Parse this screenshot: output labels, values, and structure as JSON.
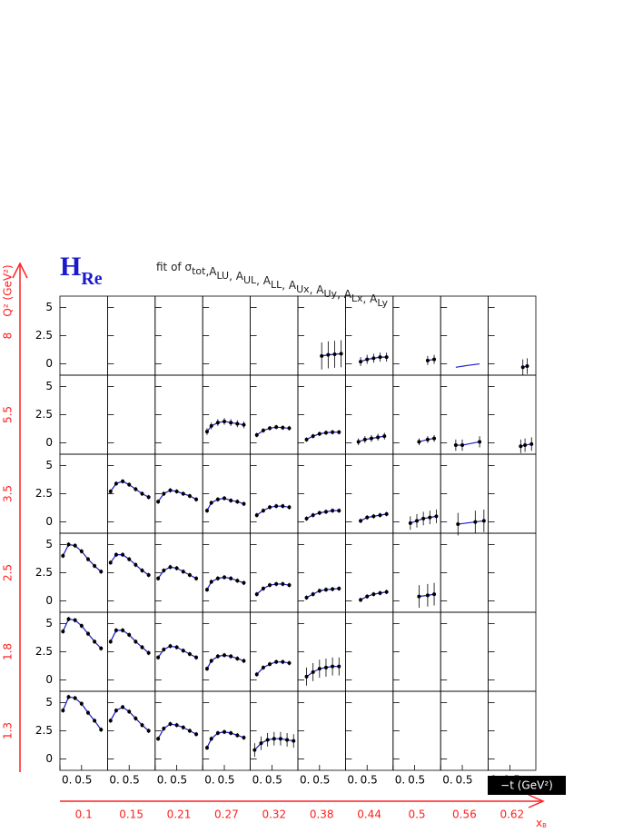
{
  "chart_data": {
    "type": "panel-grid",
    "title": {
      "text": "H",
      "sub": "Re"
    },
    "subtitle": [
      {
        "text": "fit of σ",
        "sub": "tot"
      },
      {
        "text": ",A",
        "sub": "LU"
      },
      {
        "text": ", A",
        "sub": "UL"
      },
      {
        "text": ", A",
        "sub": "LL"
      },
      {
        "text": ", A",
        "sub": "Ux"
      },
      {
        "text": ", A",
        "sub": "Uy"
      },
      {
        "text": ", A",
        "sub": "Lx"
      },
      {
        "text": ", A",
        "sub": "Ly"
      }
    ],
    "y_label": "Q² (GeV²)",
    "x_label": {
      "text": "x",
      "sub": "B"
    },
    "t_label": "−t (GeV²)",
    "rows": [
      8,
      5.5,
      3.5,
      2.5,
      1.8,
      1.3
    ],
    "cols": [
      0.1,
      0.15,
      0.21,
      0.27,
      0.32,
      0.38,
      0.44,
      0.5,
      0.56,
      0.62
    ],
    "ylim": [
      -1,
      6
    ],
    "yticks": [
      0,
      2.5,
      5
    ],
    "xlim": [
      0,
      1.1
    ],
    "xticks": [
      {
        "value": 0,
        "label": "0."
      },
      0.5
    ],
    "point_color": "#000000",
    "curve_color": "#1a1acc",
    "annotation_color": "#ff2020",
    "panels": [
      [
        null,
        null,
        null,
        null,
        null,
        {
          "x": [
            0.55,
            0.7,
            0.85,
            1.0
          ],
          "y": [
            0.7,
            0.8,
            0.85,
            0.9
          ],
          "err": 1.2
        },
        {
          "x": [
            0.35,
            0.5,
            0.65,
            0.8,
            0.95
          ],
          "y": [
            0.2,
            0.4,
            0.5,
            0.6,
            0.6
          ],
          "err": 0.4
        },
        {
          "x": [
            0.8,
            0.95
          ],
          "y": [
            0.3,
            0.4
          ],
          "err": 0.4
        },
        {
          "x": [
            0.35,
            0.6,
            0.9
          ],
          "y": [
            -0.3,
            -0.15,
            0.0
          ],
          "markers": false
        },
        {
          "x": [
            0.8,
            0.9
          ],
          "y": [
            -0.3,
            -0.2
          ],
          "err": 0.7
        }
      ],
      [
        null,
        null,
        null,
        {
          "x": [
            0.1,
            0.2,
            0.35,
            0.5,
            0.65,
            0.8,
            0.95
          ],
          "y": [
            1.0,
            1.5,
            1.8,
            1.9,
            1.8,
            1.7,
            1.6
          ],
          "err": 0.3
        },
        {
          "x": [
            0.15,
            0.3,
            0.45,
            0.6,
            0.75,
            0.9
          ],
          "y": [
            0.7,
            1.1,
            1.3,
            1.4,
            1.35,
            1.3
          ],
          "err": 0.2
        },
        {
          "x": [
            0.2,
            0.35,
            0.5,
            0.65,
            0.8,
            0.95
          ],
          "y": [
            0.3,
            0.6,
            0.8,
            0.9,
            0.95,
            0.95
          ],
          "err": 0.2
        },
        {
          "x": [
            0.3,
            0.45,
            0.6,
            0.75,
            0.9
          ],
          "y": [
            0.1,
            0.3,
            0.4,
            0.5,
            0.6
          ],
          "err": 0.3
        },
        {
          "x": [
            0.6,
            0.8,
            0.95
          ],
          "y": [
            0.1,
            0.3,
            0.4
          ],
          "err": 0.3
        },
        {
          "x": [
            0.35,
            0.5,
            0.9
          ],
          "y": [
            -0.2,
            -0.2,
            0.1
          ],
          "err": 0.5
        },
        {
          "x": [
            0.75,
            0.85,
            1.0
          ],
          "y": [
            -0.3,
            -0.2,
            -0.1
          ],
          "err": 0.6
        }
      ],
      [
        null,
        {
          "x": [
            0.07,
            0.2,
            0.35,
            0.5,
            0.65,
            0.8,
            0.95
          ],
          "y": [
            2.7,
            3.4,
            3.6,
            3.3,
            2.9,
            2.5,
            2.2
          ],
          "err": 0.2
        },
        {
          "x": [
            0.07,
            0.2,
            0.35,
            0.5,
            0.65,
            0.8,
            0.95
          ],
          "y": [
            1.8,
            2.5,
            2.8,
            2.7,
            2.5,
            2.3,
            2.0
          ],
          "err": 0.2
        },
        {
          "x": [
            0.1,
            0.2,
            0.35,
            0.5,
            0.65,
            0.8,
            0.95
          ],
          "y": [
            1.0,
            1.7,
            2.0,
            2.1,
            1.9,
            1.8,
            1.6
          ],
          "err": 0.2
        },
        {
          "x": [
            0.15,
            0.3,
            0.45,
            0.6,
            0.75,
            0.9
          ],
          "y": [
            0.6,
            1.0,
            1.3,
            1.4,
            1.4,
            1.3
          ],
          "err": 0.2
        },
        {
          "x": [
            0.2,
            0.35,
            0.5,
            0.65,
            0.8,
            0.95
          ],
          "y": [
            0.3,
            0.6,
            0.8,
            0.9,
            1.0,
            1.0
          ],
          "err": 0.2
        },
        {
          "x": [
            0.35,
            0.5,
            0.65,
            0.8,
            0.95
          ],
          "y": [
            0.1,
            0.4,
            0.5,
            0.6,
            0.7
          ],
          "err": 0.2
        },
        {
          "x": [
            0.4,
            0.55,
            0.7,
            0.85,
            1.0
          ],
          "y": [
            -0.1,
            0.1,
            0.3,
            0.4,
            0.5
          ],
          "err": 0.6
        },
        {
          "x": [
            0.4,
            0.8,
            1.0
          ],
          "y": [
            -0.2,
            0.0,
            0.1
          ],
          "err": 1.0
        },
        null
      ],
      [
        {
          "x": [
            0.07,
            0.2,
            0.35,
            0.5,
            0.65,
            0.8,
            0.95
          ],
          "y": [
            4.0,
            5.0,
            4.9,
            4.4,
            3.7,
            3.1,
            2.6
          ],
          "err": 0.2
        },
        {
          "x": [
            0.07,
            0.2,
            0.35,
            0.5,
            0.65,
            0.8,
            0.95
          ],
          "y": [
            3.4,
            4.1,
            4.1,
            3.7,
            3.2,
            2.7,
            2.3
          ],
          "err": 0.2
        },
        {
          "x": [
            0.07,
            0.2,
            0.35,
            0.5,
            0.65,
            0.8,
            0.95
          ],
          "y": [
            2.0,
            2.7,
            3.0,
            2.9,
            2.6,
            2.3,
            2.0
          ],
          "err": 0.2
        },
        {
          "x": [
            0.1,
            0.2,
            0.35,
            0.5,
            0.65,
            0.8,
            0.95
          ],
          "y": [
            1.0,
            1.7,
            2.0,
            2.1,
            2.0,
            1.8,
            1.6
          ],
          "err": 0.2
        },
        {
          "x": [
            0.15,
            0.3,
            0.45,
            0.6,
            0.75,
            0.9
          ],
          "y": [
            0.6,
            1.1,
            1.4,
            1.5,
            1.5,
            1.4
          ],
          "err": 0.2
        },
        {
          "x": [
            0.2,
            0.35,
            0.5,
            0.65,
            0.8,
            0.95
          ],
          "y": [
            0.3,
            0.6,
            0.9,
            1.0,
            1.05,
            1.1
          ],
          "err": 0.2
        },
        {
          "x": [
            0.35,
            0.5,
            0.65,
            0.8,
            0.95
          ],
          "y": [
            0.1,
            0.4,
            0.6,
            0.7,
            0.8
          ],
          "err": 0.2
        },
        {
          "x": [
            0.6,
            0.8,
            0.95
          ],
          "y": [
            0.4,
            0.5,
            0.6
          ],
          "err": 1.0
        },
        null,
        null
      ],
      [
        {
          "x": [
            0.07,
            0.2,
            0.35,
            0.5,
            0.65,
            0.8,
            0.95
          ],
          "y": [
            4.3,
            5.4,
            5.3,
            4.8,
            4.1,
            3.4,
            2.8
          ],
          "err": 0.2
        },
        {
          "x": [
            0.07,
            0.2,
            0.35,
            0.5,
            0.65,
            0.8,
            0.95
          ],
          "y": [
            3.4,
            4.4,
            4.4,
            4.0,
            3.4,
            2.9,
            2.4
          ],
          "err": 0.2
        },
        {
          "x": [
            0.07,
            0.2,
            0.35,
            0.5,
            0.65,
            0.8,
            0.95
          ],
          "y": [
            2.0,
            2.7,
            3.0,
            2.9,
            2.6,
            2.3,
            2.0
          ],
          "err": 0.2
        },
        {
          "x": [
            0.1,
            0.2,
            0.35,
            0.5,
            0.65,
            0.8,
            0.95
          ],
          "y": [
            1.0,
            1.7,
            2.1,
            2.2,
            2.1,
            1.9,
            1.7
          ],
          "err": 0.2
        },
        {
          "x": [
            0.15,
            0.3,
            0.45,
            0.6,
            0.75,
            0.9
          ],
          "y": [
            0.5,
            1.1,
            1.4,
            1.6,
            1.6,
            1.5
          ],
          "err": 0.2
        },
        {
          "x": [
            0.2,
            0.35,
            0.5,
            0.65,
            0.8,
            0.95
          ],
          "y": [
            0.3,
            0.7,
            1.0,
            1.1,
            1.2,
            1.2
          ],
          "err": 0.8
        },
        null,
        null,
        null,
        null
      ],
      [
        {
          "x": [
            0.07,
            0.2,
            0.35,
            0.5,
            0.65,
            0.8,
            0.95
          ],
          "y": [
            4.3,
            5.5,
            5.4,
            4.9,
            4.1,
            3.4,
            2.6
          ],
          "err": 0.2
        },
        {
          "x": [
            0.07,
            0.2,
            0.35,
            0.5,
            0.65,
            0.8,
            0.95
          ],
          "y": [
            3.4,
            4.3,
            4.6,
            4.2,
            3.6,
            3.0,
            2.5
          ],
          "err": 0.2
        },
        {
          "x": [
            0.07,
            0.2,
            0.35,
            0.5,
            0.65,
            0.8,
            0.95
          ],
          "y": [
            1.8,
            2.7,
            3.1,
            3.0,
            2.8,
            2.5,
            2.2
          ],
          "err": 0.2
        },
        {
          "x": [
            0.1,
            0.2,
            0.35,
            0.5,
            0.65,
            0.8,
            0.95
          ],
          "y": [
            1.0,
            1.8,
            2.3,
            2.4,
            2.3,
            2.1,
            1.9
          ],
          "err": 0.2
        },
        {
          "x": [
            0.1,
            0.25,
            0.4,
            0.55,
            0.7,
            0.85,
            1.0
          ],
          "y": [
            0.8,
            1.4,
            1.7,
            1.8,
            1.8,
            1.7,
            1.6
          ],
          "err": 0.6
        },
        null,
        null,
        null,
        null,
        null
      ]
    ]
  }
}
